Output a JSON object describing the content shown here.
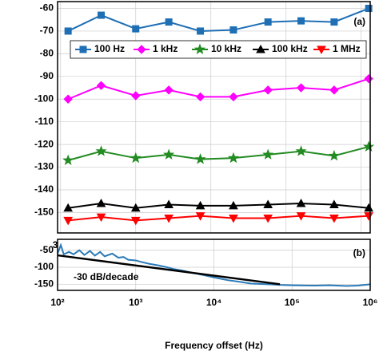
{
  "chart_data": [
    {
      "type": "line",
      "annotation": "(a)",
      "x": [
        305,
        327,
        350,
        372,
        393,
        415,
        438,
        460,
        482,
        505
      ],
      "xlim": [
        298,
        506
      ],
      "xticks": [
        300,
        350,
        400,
        450,
        500
      ],
      "ylim": [
        -159,
        -57
      ],
      "yticks": [
        -60,
        -70,
        -80,
        -90,
        -100,
        -110,
        -120,
        -130,
        -140,
        -150
      ],
      "grid": true,
      "series": [
        {
          "name": "100 Hz",
          "color": "#1f6fb5",
          "marker": "square",
          "values": [
            -70,
            -63,
            -69,
            -66,
            -70,
            -69.5,
            -66,
            -65.5,
            -66,
            -60
          ]
        },
        {
          "name": "1 kHz",
          "color": "#ff00ff",
          "marker": "diamond",
          "values": [
            -100,
            -94,
            -98.5,
            -96,
            -99,
            -99,
            -96,
            -95,
            -96,
            -91
          ]
        },
        {
          "name": "10 kHz",
          "color": "#228b22",
          "marker": "star",
          "values": [
            -127,
            -123,
            -126,
            -124.5,
            -126.5,
            -126,
            -124.5,
            -123,
            -125,
            -121
          ]
        },
        {
          "name": "100 kHz",
          "color": "#000000",
          "marker": "triangle",
          "values": [
            -148,
            -146,
            -148,
            -146.5,
            -147,
            -147,
            -146.5,
            -146,
            -146.5,
            -148
          ]
        },
        {
          "name": "1 MHz",
          "color": "#ff0000",
          "marker": "triangle-down",
          "values": [
            -153.5,
            -152,
            -153.5,
            -152.5,
            -151.5,
            -152.5,
            -152.5,
            -151.5,
            -152.5,
            -151.5
          ]
        }
      ]
    },
    {
      "type": "line",
      "annotation": "(b)",
      "xlabel": "Frequency offset (Hz)",
      "xscale": "log",
      "xlim": [
        100,
        1000000
      ],
      "xticks": [
        {
          "value": 100,
          "label": "10²"
        },
        {
          "value": 1000,
          "label": "10³"
        },
        {
          "value": 10000,
          "label": "10⁴"
        },
        {
          "value": 100000,
          "label": "10⁵"
        },
        {
          "value": 1000000,
          "label": "10⁶"
        }
      ],
      "ylim": [
        -168,
        -18
      ],
      "yticks": [
        -50,
        -100,
        -150
      ],
      "grid": true,
      "series": [
        {
          "color": "#2a7ab8",
          "x": [
            100,
            110,
            120,
            140,
            160,
            190,
            220,
            260,
            300,
            350,
            400,
            500,
            600,
            700,
            800,
            1000,
            1200,
            1500,
            2000,
            2500,
            3000,
            4000,
            5000,
            7000,
            10000,
            15000,
            20000,
            30000,
            50000,
            70000,
            100000,
            200000,
            300000,
            500000,
            700000,
            1000000
          ],
          "values": [
            -60,
            -35,
            -62,
            -55,
            -62,
            -50,
            -64,
            -52,
            -66,
            -55,
            -68,
            -60,
            -72,
            -70,
            -78,
            -80,
            -85,
            -90,
            -95,
            -100,
            -105,
            -110,
            -115,
            -122,
            -130,
            -138,
            -142,
            -148,
            -150,
            -152,
            -153,
            -154,
            -153,
            -155,
            -154,
            -150
          ]
        },
        {
          "color": "#000000",
          "label": "-30 dB/decade",
          "x": [
            100,
            70000
          ],
          "values": [
            -65,
            -150
          ]
        }
      ]
    }
  ]
}
